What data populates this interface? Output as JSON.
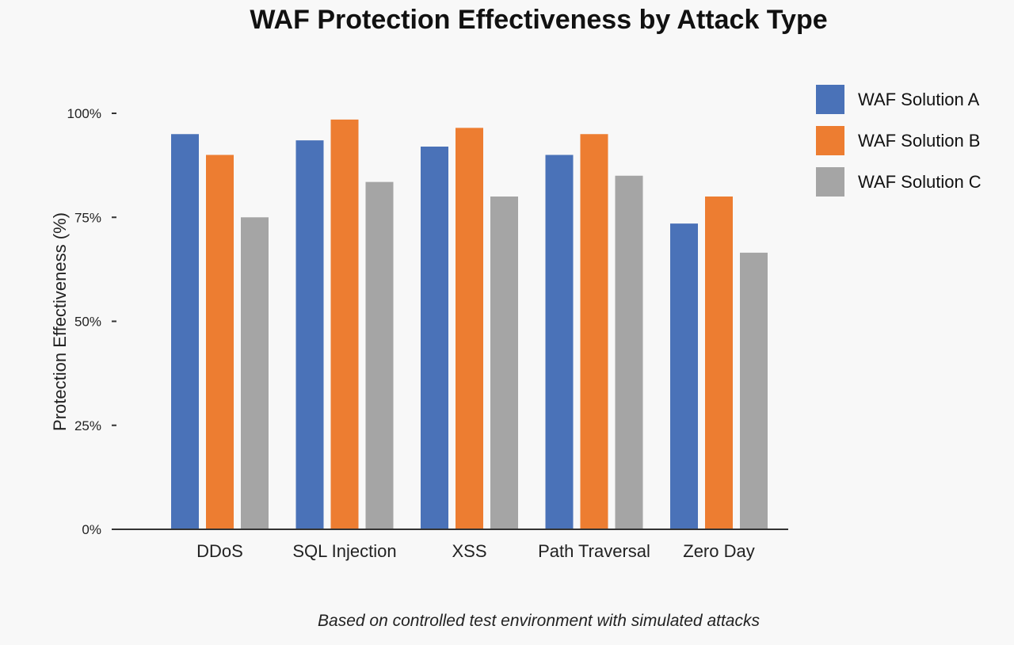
{
  "chart_data": {
    "type": "bar",
    "title": "WAF Protection Effectiveness by Attack Type",
    "ylabel": "Protection Effectiveness (%)",
    "xlabel": "",
    "categories": [
      "DDoS",
      "SQL Injection",
      "XSS",
      "Path Traversal",
      "Zero Day"
    ],
    "series": [
      {
        "name": "WAF Solution A",
        "color": "#4a72b8",
        "values": [
          95,
          93.5,
          92,
          90,
          73.5
        ]
      },
      {
        "name": "WAF Solution B",
        "color": "#ed7d31",
        "values": [
          90,
          98.5,
          96.5,
          95,
          80
        ]
      },
      {
        "name": "WAF Solution C",
        "color": "#a5a5a5",
        "values": [
          75,
          83.5,
          80,
          85,
          66.5
        ]
      }
    ],
    "ylim": [
      0,
      100
    ],
    "yticks": [
      0,
      25,
      50,
      75,
      100
    ],
    "ytick_labels": [
      "0%",
      "25%",
      "50%",
      "75%",
      "100%"
    ],
    "grid": false,
    "legend_position": "right",
    "footnote": "Based on controlled test environment with simulated attacks"
  }
}
